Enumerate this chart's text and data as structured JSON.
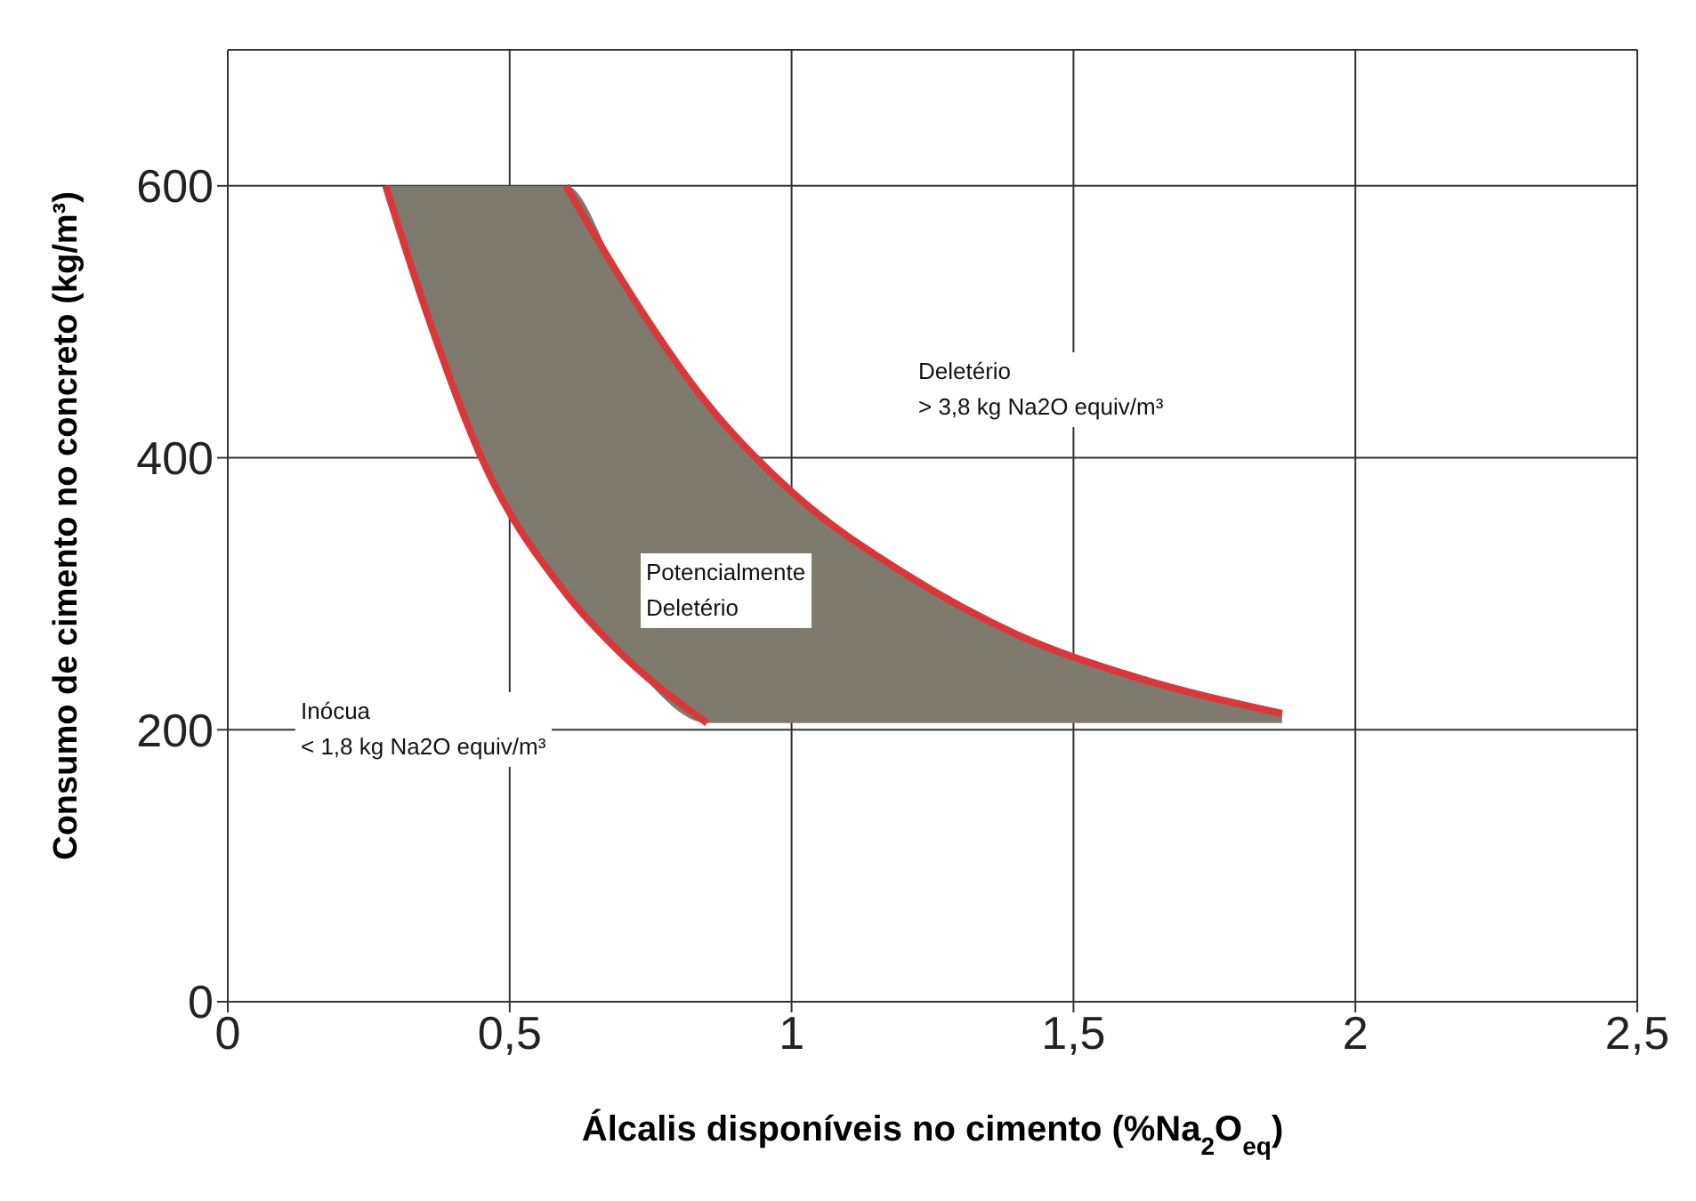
{
  "chart_data": {
    "type": "line",
    "xlabel": "Álcalis disponíveis no cimento (%Na$_{2}$O$_{eq}$)",
    "ylabel": "Consumo de cimento no concreto (kg/m³)",
    "xlim": [
      0,
      2.5
    ],
    "ylim": [
      0,
      700
    ],
    "xticks": [
      0,
      {
        "value": 0.5,
        "label": "0,5"
      },
      1,
      {
        "value": 1.5,
        "label": "1,5"
      },
      2,
      {
        "value": 2.5,
        "label": "2,5"
      }
    ],
    "yticks": [
      0,
      200,
      400,
      600
    ],
    "grid": true,
    "marker": "none",
    "line_style": "solid",
    "series": [
      {
        "color": "#7e7b6e",
        "x": [
          0.28,
          0.35,
          0.45,
          0.6,
          0.7,
          0.85,
          1.0,
          1.2,
          1.4,
          1.6,
          1.87
        ],
        "values": [
          null,
          null,
          null,
          null,
          null,
          null,
          null,
          null,
          null,
          null,
          null
        ],
        "lower": [
          600,
          510,
          400,
          300,
          255,
          205,
          205,
          205,
          205,
          205,
          205
        ],
        "upper": [
          600,
          600,
          600,
          600,
          530,
          440,
          375,
          315,
          270,
          240,
          212
        ]
      },
      {
        "color": "#d9383a",
        "x": [
          0.28,
          0.35,
          0.45,
          0.6,
          0.7,
          0.85
        ],
        "values": [
          600,
          510,
          400,
          300,
          255,
          205
        ]
      },
      {
        "color": "#d9383a",
        "x": [
          0.6,
          0.7,
          0.85,
          1.0,
          1.2,
          1.4,
          1.6,
          1.87
        ],
        "values": [
          600,
          530,
          440,
          375,
          315,
          270,
          240,
          212
        ]
      }
    ],
    "annotations": [
      "Deletério\n> 3,8 kg Na2O equiv/m³",
      "Potencialmente\nDeletério",
      "Inócua\n< 1,8 kg Na2O equiv/m³"
    ]
  }
}
